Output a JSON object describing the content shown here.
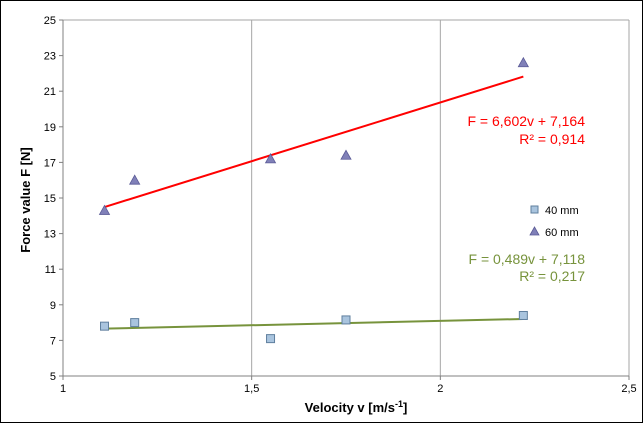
{
  "chart_data": {
    "type": "scatter",
    "xlabel": "Velocity v [m/s",
    "xlabel_sup": "-1",
    "xlabel_end": "]",
    "ylabel": "Force value F [N]",
    "xlim": [
      1,
      2.5
    ],
    "ylim": [
      5,
      25
    ],
    "x_ticks": [
      1,
      1.5,
      2,
      2.5
    ],
    "x_tick_labels": [
      "1",
      "1,5",
      "2",
      "2,5"
    ],
    "y_ticks": [
      5,
      7,
      9,
      11,
      13,
      15,
      17,
      19,
      21,
      23,
      25
    ],
    "y_tick_labels": [
      "5",
      "7",
      "9",
      "11",
      "13",
      "15",
      "17",
      "19",
      "21",
      "23",
      "25"
    ],
    "grid": "vertical",
    "legend_position": "right",
    "series": [
      {
        "name": "40 mm",
        "marker": "square",
        "color": "#a9c4de",
        "edge_color": "#5f7f9e",
        "x": [
          1.11,
          1.19,
          1.55,
          1.75,
          2.22
        ],
        "y": [
          7.8,
          8.0,
          7.1,
          8.15,
          8.4
        ],
        "trendline": {
          "slope": 0.489,
          "intercept": 7.118,
          "x_range": [
            1.11,
            2.22
          ],
          "color": "#77933c"
        },
        "equation": "F = 0,489v + 7,118",
        "r2": "R² = 0,217"
      },
      {
        "name": "60 mm",
        "marker": "triangle",
        "color": "#8080b8",
        "edge_color": "#5a5a96",
        "x": [
          1.11,
          1.19,
          1.55,
          1.75,
          2.22
        ],
        "y": [
          14.3,
          16.0,
          17.2,
          17.4,
          22.6
        ],
        "trendline": {
          "slope": 6.602,
          "intercept": 7.164,
          "x_range": [
            1.11,
            2.22
          ],
          "color": "#ff0000"
        },
        "equation": "F = 6,602v + 7,164",
        "r2": "R² = 0,914"
      }
    ]
  }
}
